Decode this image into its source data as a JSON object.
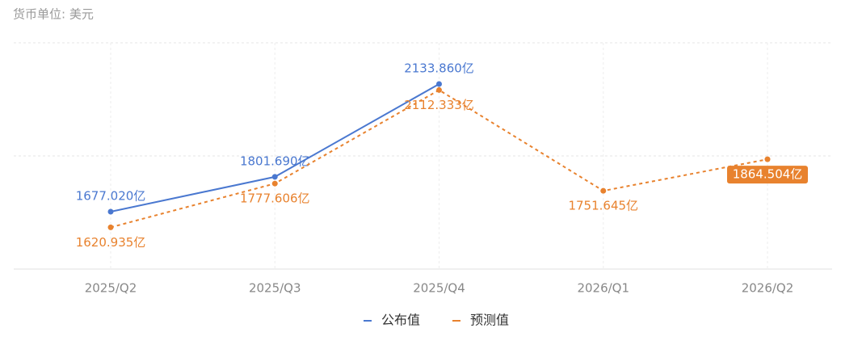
{
  "chart_data": {
    "type": "line",
    "subtitle": "货币单位: 美元",
    "categories": [
      "2025/Q2",
      "2025/Q3",
      "2025/Q4",
      "2026/Q1",
      "2026/Q2"
    ],
    "series": [
      {
        "name": "公布值",
        "color": "#4a78d0",
        "dashed": false,
        "values": [
          1677.02,
          1801.69,
          2133.86,
          null,
          null
        ],
        "value_labels": [
          "1677.020亿",
          "1801.690亿",
          "2133.860亿",
          null,
          null
        ]
      },
      {
        "name": "预测值",
        "color": "#e8822e",
        "dashed": true,
        "values": [
          1620.935,
          1777.606,
          2112.333,
          1751.645,
          1864.504
        ],
        "value_labels": [
          "1620.935亿",
          "1777.606亿",
          "2112.333亿",
          "1751.645亿",
          "1864.504亿"
        ]
      }
    ],
    "ylim": [
      1471.7,
      2281.3
    ],
    "grid": true
  }
}
